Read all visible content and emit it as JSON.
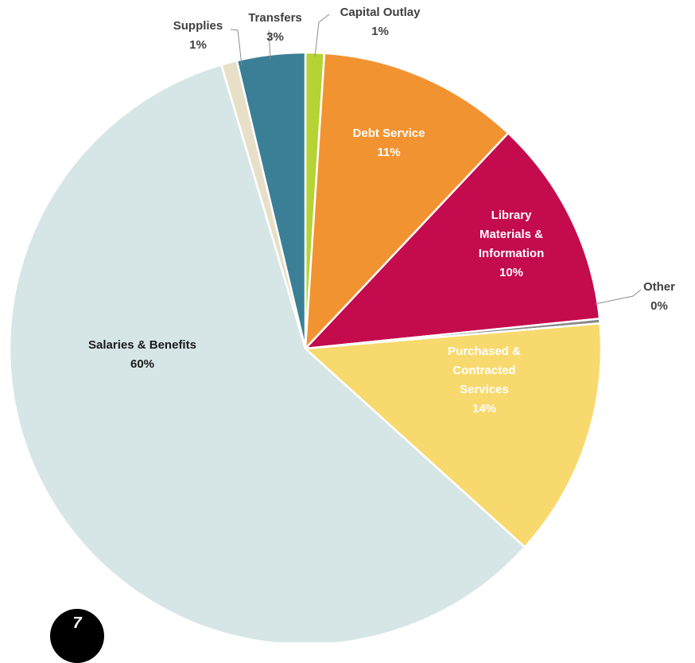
{
  "chart_data": {
    "type": "pie",
    "title": "",
    "slices": [
      {
        "label": "Capital Outlay",
        "value": 1,
        "value_label": "1%",
        "color": "#B5D335",
        "label_color": "#404040",
        "label_placement": "outside-callout"
      },
      {
        "label": "Debt Service",
        "value": 11,
        "value_label": "11%",
        "color": "#F29331",
        "label_color": "#FFFFFF",
        "label_placement": "inside"
      },
      {
        "label": "Library Materials & Information",
        "value": 10,
        "value_label": "10%",
        "color": "#C30B4E",
        "label_color": "#FFFFFF",
        "label_placement": "inside"
      },
      {
        "label": "Other",
        "value": 0,
        "value_label": "0%",
        "color": "#8A8A8A",
        "label_color": "#404040",
        "label_placement": "outside-callout"
      },
      {
        "label": "Purchased & Contracted Services",
        "value": 14,
        "value_label": "14%",
        "color": "#F8D96E",
        "label_color": "#FFFFFF",
        "label_placement": "inside"
      },
      {
        "label": "Salaries & Benefits",
        "value": 60,
        "value_label": "60%",
        "color": "#D6E6E6",
        "label_color": "#1A1A1A",
        "label_placement": "inside"
      },
      {
        "label": "Supplies",
        "value": 1,
        "value_label": "1%",
        "color": "#E8DFC8",
        "label_color": "#404040",
        "label_placement": "outside-callout"
      },
      {
        "label": "Transfers",
        "value": 3,
        "value_label": "3%",
        "color": "#3A7F95",
        "label_color": "#404040",
        "label_placement": "outside-callout"
      }
    ],
    "start": "12 o'clock",
    "direction": "clockwise",
    "slice_border": "white"
  },
  "page_number": "7"
}
